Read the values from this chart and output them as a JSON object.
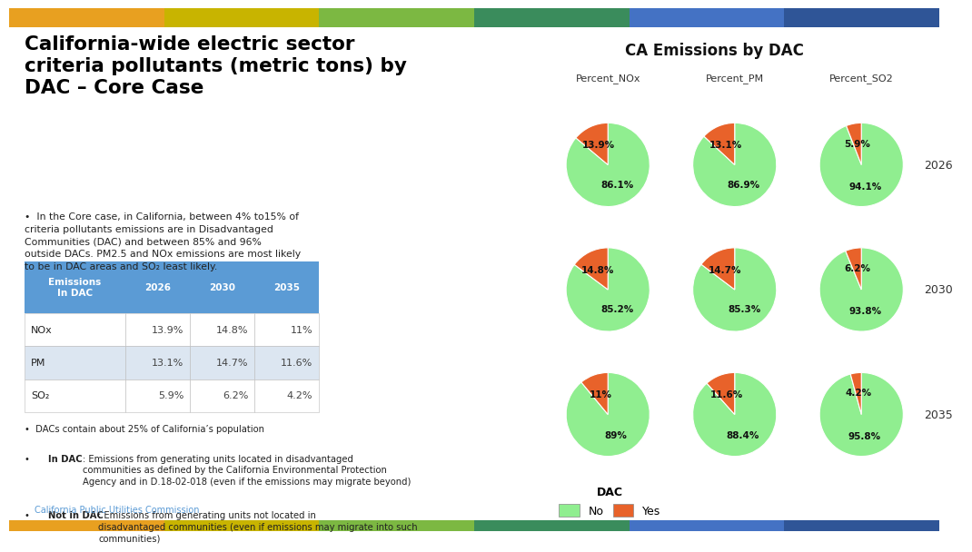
{
  "title": "California-wide electric sector\ncriteria pollutants (metric tons) by\nDAC – Core Case",
  "right_title": "CA Emissions by DAC",
  "bullet1": "In the Core case, in California, between 4% to15% of\ncriteria pollutants emissions are in Disadvantaged\nCommunities (DAC) and between 85% and 96%\noutside DACs. PM2.5 and NOx emissions are most likely\nto be in DAC areas and SO₂ least likely.",
  "bullet2": "DACs contain about 25% of California’s population",
  "bullet3_bold": "In DAC",
  "bullet3_rest": ": Emissions from generating units located in disadvantaged\ncommunities as defined by the California Environmental Protection\nAgency and in D.18-02-018 (even if the emissions may migrate beyond)",
  "bullet4_bold": "Not in DAC",
  "bullet4_rest": ": Emissions from generating units not located in\ndisadvantaged communities (even if emissions may migrate into such\ncommunities)",
  "footer": "California Public Utilities Commission",
  "table_header": [
    "Emissions\nIn DAC",
    "2026",
    "2030",
    "2035"
  ],
  "table_rows": [
    [
      "NOx",
      "13.9%",
      "14.8%",
      "11%"
    ],
    [
      "PM",
      "13.1%",
      "14.7%",
      "11.6%"
    ],
    [
      "SO₂",
      "5.9%",
      "6.2%",
      "4.2%"
    ]
  ],
  "col_labels": [
    "Percent_NOx",
    "Percent_PM",
    "Percent_SO2"
  ],
  "row_labels": [
    "2026",
    "2030",
    "2035"
  ],
  "pie_data": {
    "NOx": {
      "2026": [
        86.1,
        13.9
      ],
      "2030": [
        85.2,
        14.8
      ],
      "2035": [
        89.0,
        11.0
      ]
    },
    "PM": {
      "2026": [
        86.9,
        13.1
      ],
      "2030": [
        85.3,
        14.7
      ],
      "2035": [
        88.4,
        11.6
      ]
    },
    "SO2": {
      "2026": [
        94.1,
        5.9
      ],
      "2030": [
        93.8,
        6.2
      ],
      "2035": [
        95.8,
        4.2
      ]
    }
  },
  "pie_labels": {
    "NOx": {
      "2026": [
        "86.1%",
        "13.9%"
      ],
      "2030": [
        "85.2%",
        "14.8%"
      ],
      "2035": [
        "89%",
        "11%"
      ]
    },
    "PM": {
      "2026": [
        "86.9%",
        "13.1%"
      ],
      "2030": [
        "85.3%",
        "14.7%"
      ],
      "2035": [
        "88.4%",
        "11.6%"
      ]
    },
    "SO2": {
      "2026": [
        "94.1%",
        "5.9%"
      ],
      "2030": [
        "93.8%",
        "6.2%"
      ],
      "2035": [
        "95.8%",
        "4.2%"
      ]
    }
  },
  "color_no": "#90EE90",
  "color_yes": "#E8622A",
  "color_header_bg": "#5B9BD5",
  "color_header_text": "#FFFFFF",
  "color_row_bg1": "#FFFFFF",
  "color_row_bg2": "#DCE6F1",
  "color_title": "#000000",
  "color_footer": "#5B9BD5",
  "top_bar_colors": [
    "#E8A020",
    "#C8B400",
    "#7CB842",
    "#3A8C5C",
    "#4472C4",
    "#2F5597"
  ],
  "bottom_bar_colors": [
    "#E8A020",
    "#C8B400",
    "#7CB842",
    "#3A8C5C",
    "#4472C4",
    "#2F5597"
  ]
}
